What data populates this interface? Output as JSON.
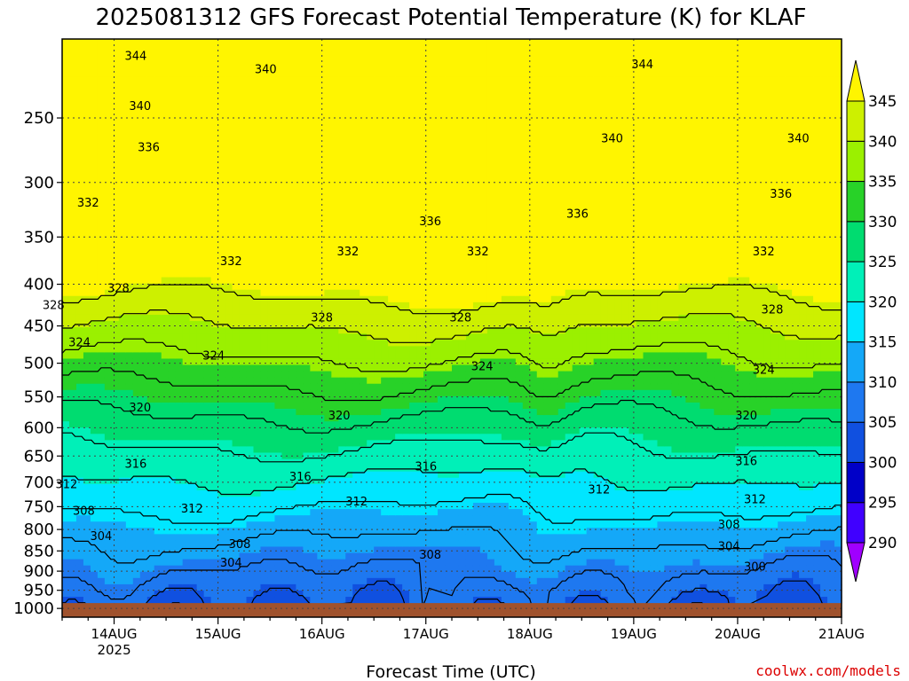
{
  "chart_data": {
    "type": "heatmap",
    "title": "2025081312 GFS Forecast Potential Temperature (K) for KLAF",
    "xlabel": "Forecast Time (UTC)",
    "x_ticks": [
      "14AUG",
      "15AUG",
      "16AUG",
      "17AUG",
      "18AUG",
      "19AUG",
      "20AUG",
      "21AUG"
    ],
    "x_year_label": "2025",
    "x_range_hours": [
      -12,
      168
    ],
    "y_ticks": [
      "250",
      "300",
      "350",
      "400",
      "450",
      "500",
      "550",
      "600",
      "650",
      "700",
      "750",
      "800",
      "850",
      "900",
      "950",
      "1000"
    ],
    "y_range": [
      200,
      1025
    ],
    "y_scale": "log-pressure (inverted)",
    "colorbar": {
      "levels": [
        290,
        295,
        300,
        305,
        310,
        315,
        320,
        325,
        330,
        335,
        340,
        345
      ],
      "labels": [
        "345",
        "340",
        "335",
        "330",
        "325",
        "320",
        "315",
        "310",
        "305",
        "300",
        "295",
        "290"
      ],
      "colors": [
        "#a000ff",
        "#4000ff",
        "#0000c8",
        "#1050e0",
        "#1e78f0",
        "#14a8f8",
        "#00e6ff",
        "#00f0b8",
        "#00dc70",
        "#28d228",
        "#9bf000",
        "#cdf000",
        "#fff500"
      ]
    },
    "contour_levels": [
      300,
      304,
      308,
      312,
      316,
      320,
      324,
      328,
      332,
      336,
      340,
      344
    ],
    "contour_labels": [
      {
        "text": "344",
        "t": 5,
        "p": 210
      },
      {
        "text": "340",
        "t": 35,
        "p": 218
      },
      {
        "text": "340",
        "t": 6,
        "p": 242
      },
      {
        "text": "336",
        "t": 8,
        "p": 272
      },
      {
        "text": "332",
        "t": -6,
        "p": 318
      },
      {
        "text": "328",
        "t": -14,
        "p": 425
      },
      {
        "text": "328",
        "t": 1,
        "p": 405
      },
      {
        "text": "324",
        "t": -8,
        "p": 472
      },
      {
        "text": "320",
        "t": 6,
        "p": 567
      },
      {
        "text": "316",
        "t": 5,
        "p": 665
      },
      {
        "text": "312",
        "t": -11,
        "p": 705
      },
      {
        "text": "308",
        "t": -7,
        "p": 760
      },
      {
        "text": "304",
        "t": -3,
        "p": 816
      },
      {
        "text": "324",
        "t": 23,
        "p": 490
      },
      {
        "text": "312",
        "t": 18,
        "p": 755
      },
      {
        "text": "304",
        "t": 27,
        "p": 880
      },
      {
        "text": "332",
        "t": 27,
        "p": 375
      },
      {
        "text": "308",
        "t": 29,
        "p": 835
      },
      {
        "text": "328",
        "t": 48,
        "p": 440
      },
      {
        "text": "320",
        "t": 52,
        "p": 580
      },
      {
        "text": "316",
        "t": 43,
        "p": 690
      },
      {
        "text": "312",
        "t": 56,
        "p": 740
      },
      {
        "text": "332",
        "t": 54,
        "p": 365
      },
      {
        "text": "336",
        "t": 73,
        "p": 335
      },
      {
        "text": "328",
        "t": 80,
        "p": 440
      },
      {
        "text": "324",
        "t": 85,
        "p": 505
      },
      {
        "text": "316",
        "t": 72,
        "p": 670
      },
      {
        "text": "308",
        "t": 73,
        "p": 860
      },
      {
        "text": "332",
        "t": 84,
        "p": 365
      },
      {
        "text": "344",
        "t": 122,
        "p": 215
      },
      {
        "text": "340",
        "t": 115,
        "p": 265
      },
      {
        "text": "336",
        "t": 107,
        "p": 328
      },
      {
        "text": "312",
        "t": 112,
        "p": 715
      },
      {
        "text": "340",
        "t": 158,
        "p": 265
      },
      {
        "text": "336",
        "t": 154,
        "p": 310
      },
      {
        "text": "332",
        "t": 150,
        "p": 365
      },
      {
        "text": "328",
        "t": 152,
        "p": 430
      },
      {
        "text": "324",
        "t": 150,
        "p": 510
      },
      {
        "text": "320",
        "t": 146,
        "p": 580
      },
      {
        "text": "316",
        "t": 146,
        "p": 660
      },
      {
        "text": "312",
        "t": 148,
        "p": 735
      },
      {
        "text": "308",
        "t": 142,
        "p": 790
      },
      {
        "text": "304",
        "t": 142,
        "p": 840
      },
      {
        "text": "300",
        "t": 148,
        "p": 890
      }
    ],
    "ground_color": "#a0522d",
    "grid": true
  },
  "credit": "coolwx.com/models",
  "credit_color": "#dc0000"
}
